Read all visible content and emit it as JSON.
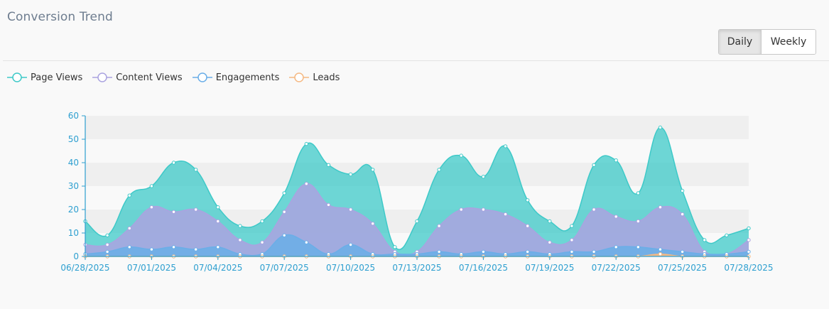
{
  "header": {
    "title": "Conversion Trend",
    "toggle": {
      "daily_label": "Daily",
      "weekly_label": "Weekly",
      "selected": "Daily"
    }
  },
  "colors": {
    "page_views": "#3ec9c8",
    "content_views": "#aaa3e0",
    "engagements": "#6aaee8",
    "leads": "#f5b983",
    "axis": "#2d9fd0",
    "band": "#efefef"
  },
  "legend_icon": "circle-line-marker",
  "chart_data": {
    "type": "area",
    "title": "",
    "xlabel": "",
    "ylabel": "",
    "ylim": [
      0,
      60
    ],
    "yticks": [
      0,
      10,
      20,
      30,
      40,
      50,
      60
    ],
    "grid": "alternating-bands",
    "legend_position": "top-left",
    "x": [
      "06/28/2025",
      "06/29/2025",
      "06/30/2025",
      "07/01/2025",
      "07/02/2025",
      "07/03/2025",
      "07/04/2025",
      "07/05/2025",
      "07/06/2025",
      "07/07/2025",
      "07/08/2025",
      "07/09/2025",
      "07/10/2025",
      "07/11/2025",
      "07/12/2025",
      "07/13/2025",
      "07/14/2025",
      "07/15/2025",
      "07/16/2025",
      "07/17/2025",
      "07/18/2025",
      "07/19/2025",
      "07/20/2025",
      "07/21/2025",
      "07/22/2025",
      "07/23/2025",
      "07/24/2025",
      "07/25/2025",
      "07/26/2025",
      "07/27/2025",
      "07/28/2025"
    ],
    "xtick_labels": [
      "06/28/2025",
      "07/01/2025",
      "07/04/2025",
      "07/07/2025",
      "07/10/2025",
      "07/13/2025",
      "07/16/2025",
      "07/19/2025",
      "07/22/2025",
      "07/25/2025",
      "07/28/2025"
    ],
    "series": [
      {
        "name": "Page Views",
        "color": "#3ec9c8",
        "values": [
          15,
          9,
          26,
          30,
          40,
          37,
          21,
          13,
          15,
          27,
          48,
          39,
          35,
          37,
          4,
          15,
          37,
          43,
          34,
          47,
          24,
          15,
          13,
          39,
          41,
          27,
          55,
          28,
          7,
          9,
          12
        ]
      },
      {
        "name": "Content Views",
        "color": "#aaa3e0",
        "values": [
          5,
          5,
          12,
          21,
          19,
          20,
          15,
          7,
          6,
          19,
          31,
          22,
          20,
          14,
          2,
          2,
          13,
          20,
          20,
          18,
          13,
          6,
          7,
          20,
          17,
          15,
          21,
          18,
          2,
          1,
          7
        ]
      },
      {
        "name": "Engagements",
        "color": "#6aaee8",
        "values": [
          1,
          2,
          4,
          3,
          4,
          3,
          4,
          1,
          1,
          9,
          6,
          1,
          5,
          1,
          1,
          1,
          2,
          1,
          2,
          1,
          2,
          1,
          2,
          2,
          4,
          4,
          3,
          2,
          1,
          1,
          2
        ]
      },
      {
        "name": "Leads",
        "color": "#f5b983",
        "values": [
          0,
          0,
          0,
          0,
          0,
          0,
          0,
          0,
          0,
          0,
          0,
          0,
          0,
          0,
          0,
          0,
          0,
          0,
          0,
          0,
          0,
          0,
          0,
          0,
          0,
          0,
          1,
          0,
          0,
          0,
          0
        ]
      }
    ]
  }
}
